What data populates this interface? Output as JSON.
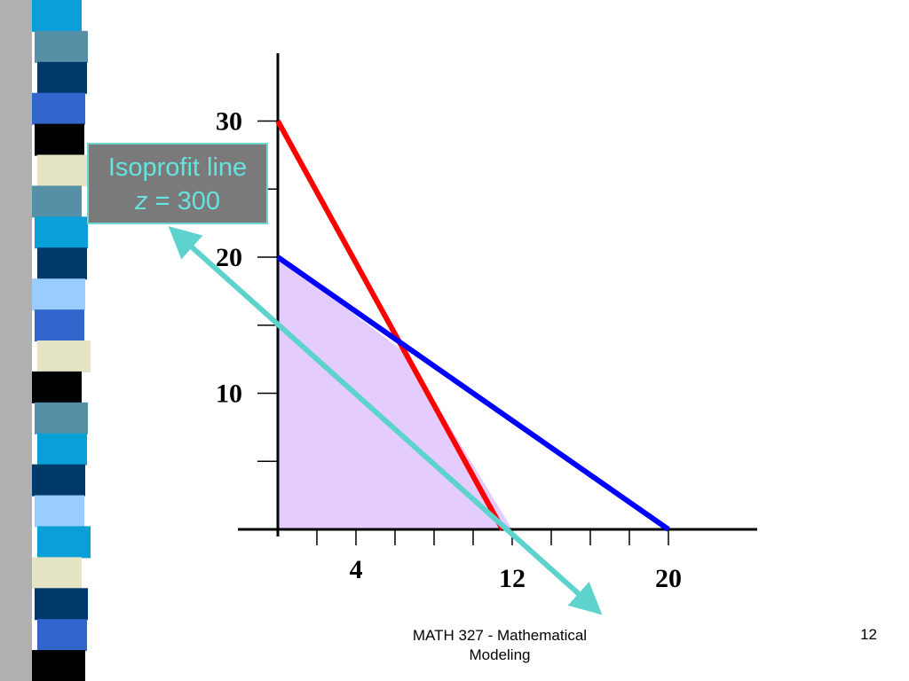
{
  "chart_data": {
    "type": "line",
    "title": "",
    "xlabel": "",
    "ylabel": "",
    "xlim": [
      0,
      24
    ],
    "ylim": [
      0,
      35
    ],
    "x_ticks": [
      2,
      4,
      6,
      8,
      10,
      12,
      14,
      16,
      18,
      20
    ],
    "x_tick_labels": [
      {
        "value": 4,
        "label": "4"
      },
      {
        "value": 12,
        "label": "12"
      },
      {
        "value": 20,
        "label": "20"
      }
    ],
    "y_ticks": [
      5,
      10,
      15,
      20,
      25,
      30
    ],
    "y_tick_labels": [
      {
        "value": 10,
        "label": "10"
      },
      {
        "value": 20,
        "label": "20"
      },
      {
        "value": 30,
        "label": "30"
      }
    ],
    "feasible_region": {
      "points": [
        [
          0,
          0
        ],
        [
          0,
          20
        ],
        [
          6.5,
          13
        ],
        [
          12,
          0
        ]
      ],
      "color": "#e5ccff"
    },
    "series": [
      {
        "points": [
          [
            0,
            30
          ],
          [
            11.5,
            0
          ]
        ],
        "color": "#ff0000"
      },
      {
        "points": [
          [
            0,
            20
          ],
          [
            20,
            0
          ]
        ],
        "color": "#0000ff"
      },
      {
        "points": [
          [
            -5,
            21.5
          ],
          [
            16,
            -5.5
          ]
        ],
        "color": "#5ed3cd",
        "arrows": "both"
      }
    ],
    "annotations": [
      {
        "text_line1": "Isoprofit line",
        "text_var": "z",
        "text_rest": " = 300"
      }
    ],
    "grid": false,
    "legend": "none"
  },
  "footer": {
    "course": "MATH 327 - Mathematical Modeling",
    "page_number": "12"
  },
  "colors": {
    "strip": [
      "#0b9fd8",
      "#5590a6",
      "#003a6b",
      "#3366cc",
      "#000000",
      "#e4e4c4",
      "#99ccff"
    ]
  }
}
